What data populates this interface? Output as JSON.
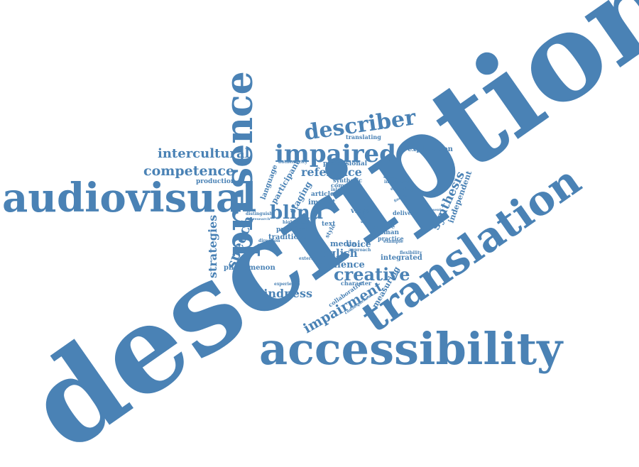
{
  "word_color": "#4a82b5",
  "background": "#ffffff",
  "words": [
    {
      "text": "description"
    },
    {
      "text": "accessibility"
    },
    {
      "text": "translation"
    },
    {
      "text": "audiovisual"
    },
    {
      "text": "presence"
    },
    {
      "text": "impaired"
    },
    {
      "text": "describer"
    },
    {
      "text": "competence"
    },
    {
      "text": "intercultural"
    },
    {
      "text": "creative"
    },
    {
      "text": "blindness"
    },
    {
      "text": "impairment"
    },
    {
      "text": "blind"
    },
    {
      "text": "reference"
    },
    {
      "text": "speech"
    },
    {
      "text": "strategies"
    },
    {
      "text": "english"
    },
    {
      "text": "audience"
    },
    {
      "text": "voice"
    },
    {
      "text": "media"
    },
    {
      "text": "synthesis"
    },
    {
      "text": "exploration"
    },
    {
      "text": "independent"
    },
    {
      "text": "professional"
    },
    {
      "text": "translating"
    },
    {
      "text": "production"
    },
    {
      "text": "language"
    },
    {
      "text": "participant"
    },
    {
      "text": "staging"
    },
    {
      "text": "phenomenon"
    },
    {
      "text": "measuring"
    },
    {
      "text": "traditional"
    },
    {
      "text": "practical"
    },
    {
      "text": "integrated"
    },
    {
      "text": "character"
    },
    {
      "text": "visual"
    },
    {
      "text": "human"
    },
    {
      "text": "practice"
    },
    {
      "text": "impact"
    },
    {
      "text": "article"
    },
    {
      "text": "text"
    },
    {
      "text": "style"
    },
    {
      "text": "synthetic"
    },
    {
      "text": "company"
    },
    {
      "text": "authenticity"
    },
    {
      "text": "distinguish"
    },
    {
      "text": "research"
    },
    {
      "text": "collaborative"
    },
    {
      "text": "consequence"
    },
    {
      "text": "experience"
    },
    {
      "text": "explore"
    },
    {
      "text": "delivery"
    },
    {
      "text": "strategy"
    },
    {
      "text": "interpreter"
    },
    {
      "text": "exploring"
    },
    {
      "text": "flexibility"
    },
    {
      "text": "example"
    },
    {
      "text": "approach"
    },
    {
      "text": "external"
    },
    {
      "text": "direction"
    },
    {
      "text": "interest"
    },
    {
      "text": "higher"
    },
    {
      "text": "person"
    },
    {
      "text": "script"
    },
    {
      "text": "finding"
    },
    {
      "text": "present"
    }
  ]
}
